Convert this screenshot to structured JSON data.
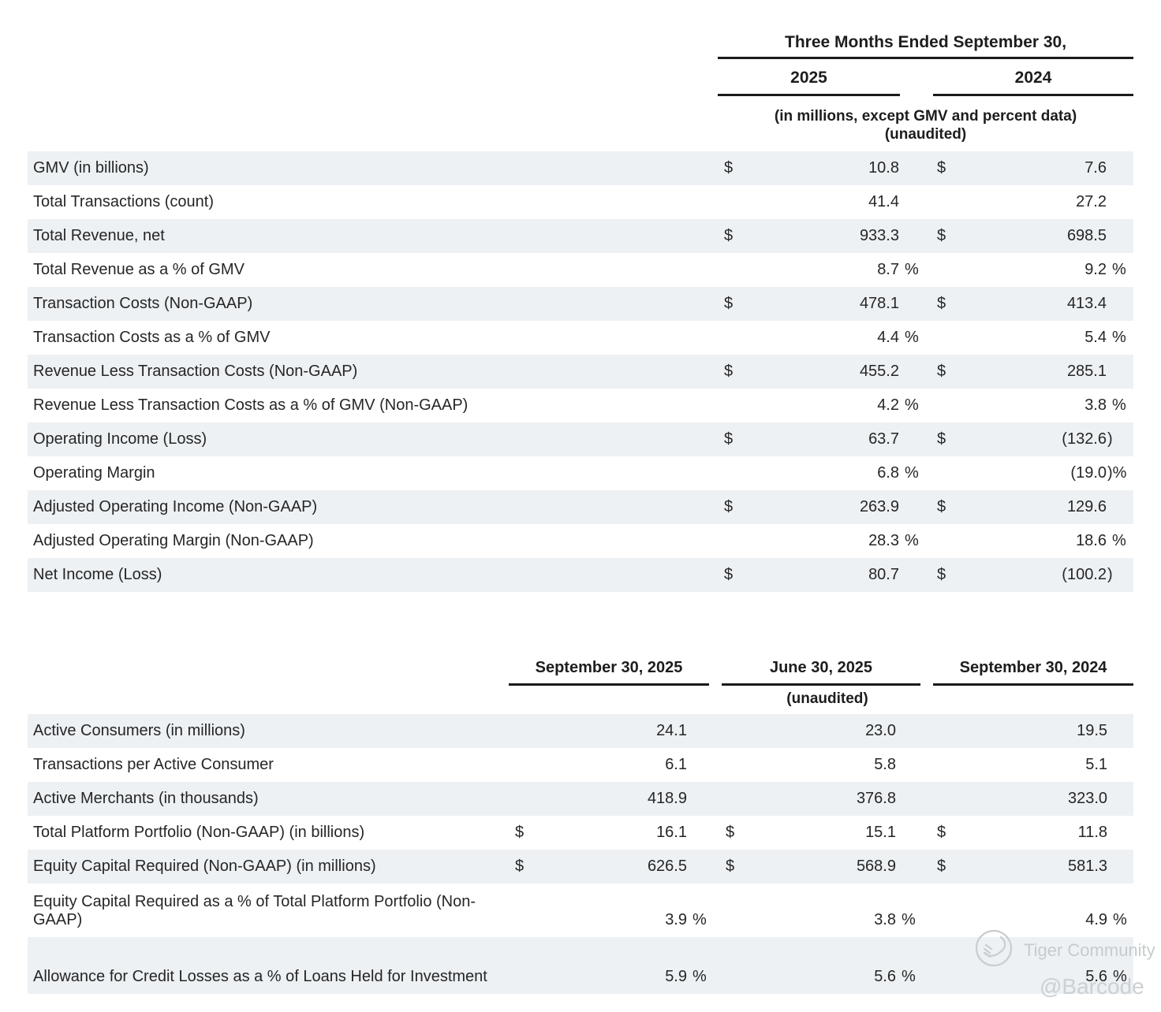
{
  "table1": {
    "period_header": "Three Months Ended September 30,",
    "columns": [
      "2025",
      "2024"
    ],
    "note_line1": "(in millions, except GMV and percent data)",
    "note_line2": "(unaudited)",
    "rows": [
      {
        "label": "GMV (in billions)",
        "cells": [
          {
            "sym": "$",
            "val": "10.8",
            "suf": ""
          },
          {
            "sym": "$",
            "val": "7.6",
            "suf": ""
          }
        ]
      },
      {
        "label": "Total Transactions (count)",
        "cells": [
          {
            "sym": "",
            "val": "41.4",
            "suf": ""
          },
          {
            "sym": "",
            "val": "27.2",
            "suf": ""
          }
        ]
      },
      {
        "label": "Total Revenue, net",
        "cells": [
          {
            "sym": "$",
            "val": "933.3",
            "suf": ""
          },
          {
            "sym": "$",
            "val": "698.5",
            "suf": ""
          }
        ]
      },
      {
        "label": "Total Revenue as a % of GMV",
        "cells": [
          {
            "sym": "",
            "val": "8.7",
            "suf": "%"
          },
          {
            "sym": "",
            "val": "9.2",
            "suf": "%"
          }
        ]
      },
      {
        "label": "Transaction Costs (Non-GAAP)",
        "cells": [
          {
            "sym": "$",
            "val": "478.1",
            "suf": ""
          },
          {
            "sym": "$",
            "val": "413.4",
            "suf": ""
          }
        ]
      },
      {
        "label": "Transaction Costs as a % of GMV",
        "cells": [
          {
            "sym": "",
            "val": "4.4",
            "suf": "%"
          },
          {
            "sym": "",
            "val": "5.4",
            "suf": "%"
          }
        ]
      },
      {
        "label": "Revenue Less Transaction Costs (Non-GAAP)",
        "cells": [
          {
            "sym": "$",
            "val": "455.2",
            "suf": ""
          },
          {
            "sym": "$",
            "val": "285.1",
            "suf": ""
          }
        ]
      },
      {
        "label": "Revenue Less Transaction Costs as a % of GMV (Non-GAAP)",
        "cells": [
          {
            "sym": "",
            "val": "4.2",
            "suf": "%"
          },
          {
            "sym": "",
            "val": "3.8",
            "suf": "%"
          }
        ]
      },
      {
        "label": "Operating Income (Loss)",
        "cells": [
          {
            "sym": "$",
            "val": "63.7",
            "suf": ""
          },
          {
            "sym": "$",
            "val": "(132.6",
            "suf": ")"
          }
        ]
      },
      {
        "label": "Operating Margin",
        "cells": [
          {
            "sym": "",
            "val": "6.8",
            "suf": "%"
          },
          {
            "sym": "",
            "val": "(19.0",
            "suf": ")%"
          }
        ]
      },
      {
        "label": "Adjusted Operating Income (Non-GAAP)",
        "cells": [
          {
            "sym": "$",
            "val": "263.9",
            "suf": ""
          },
          {
            "sym": "$",
            "val": "129.6",
            "suf": ""
          }
        ]
      },
      {
        "label": "Adjusted Operating Margin (Non-GAAP)",
        "cells": [
          {
            "sym": "",
            "val": "28.3",
            "suf": "%"
          },
          {
            "sym": "",
            "val": "18.6",
            "suf": "%"
          }
        ]
      },
      {
        "label": "Net Income (Loss)",
        "cells": [
          {
            "sym": "$",
            "val": "80.7",
            "suf": ""
          },
          {
            "sym": "$",
            "val": "(100.2",
            "suf": ")"
          }
        ]
      }
    ]
  },
  "table2": {
    "columns": [
      "September 30, 2025",
      "June 30, 2025",
      "September 30, 2024"
    ],
    "note": "(unaudited)",
    "rows": [
      {
        "label": "Active Consumers (in millions)",
        "cells": [
          {
            "sym": "",
            "val": "24.1",
            "suf": ""
          },
          {
            "sym": "",
            "val": "23.0",
            "suf": ""
          },
          {
            "sym": "",
            "val": "19.5",
            "suf": ""
          }
        ]
      },
      {
        "label": "Transactions per Active Consumer",
        "cells": [
          {
            "sym": "",
            "val": "6.1",
            "suf": ""
          },
          {
            "sym": "",
            "val": "5.8",
            "suf": ""
          },
          {
            "sym": "",
            "val": "5.1",
            "suf": ""
          }
        ]
      },
      {
        "label": "Active Merchants (in thousands)",
        "cells": [
          {
            "sym": "",
            "val": "418.9",
            "suf": ""
          },
          {
            "sym": "",
            "val": "376.8",
            "suf": ""
          },
          {
            "sym": "",
            "val": "323.0",
            "suf": ""
          }
        ]
      },
      {
        "label": "Total Platform Portfolio (Non-GAAP) (in billions)",
        "cells": [
          {
            "sym": "$",
            "val": "16.1",
            "suf": ""
          },
          {
            "sym": "$",
            "val": "15.1",
            "suf": ""
          },
          {
            "sym": "$",
            "val": "11.8",
            "suf": ""
          }
        ]
      },
      {
        "label": "Equity Capital Required (Non-GAAP) (in millions)",
        "cells": [
          {
            "sym": "$",
            "val": "626.5",
            "suf": ""
          },
          {
            "sym": "$",
            "val": "568.9",
            "suf": ""
          },
          {
            "sym": "$",
            "val": "581.3",
            "suf": ""
          }
        ]
      },
      {
        "label": "Equity Capital Required as a % of Total Platform Portfolio (Non-GAAP)",
        "cells": [
          {
            "sym": "",
            "val": "3.9",
            "suf": "%"
          },
          {
            "sym": "",
            "val": "3.8",
            "suf": "%"
          },
          {
            "sym": "",
            "val": "4.9",
            "suf": "%"
          }
        ]
      },
      {
        "label": "Allowance for Credit Losses as a % of Loans Held for Investment",
        "cells": [
          {
            "sym": "",
            "val": "5.9",
            "suf": "%"
          },
          {
            "sym": "",
            "val": "5.6",
            "suf": "%"
          },
          {
            "sym": "",
            "val": "5.6",
            "suf": "%"
          }
        ]
      }
    ]
  },
  "watermark": {
    "community": "Tiger Community",
    "handle": "@Barcode"
  },
  "colors": {
    "row_stripe": "#edf1f4",
    "rule": "#1b1b1b",
    "text": "#262626",
    "watermark": "#c9cdd0"
  }
}
